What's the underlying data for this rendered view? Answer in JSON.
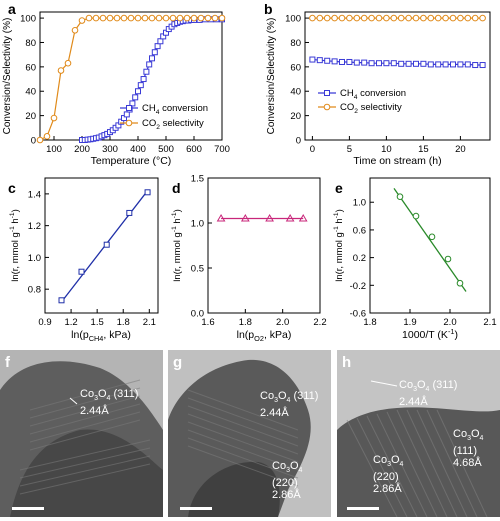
{
  "panels": {
    "a": {
      "label": "a",
      "xlabel": "Temperature (°C)",
      "ylabel": "Conversion/Selectivity (%)",
      "xticks": [
        "100",
        "200",
        "300",
        "400",
        "500",
        "600",
        "700"
      ],
      "yticks": [
        "0",
        "20",
        "40",
        "60",
        "80",
        "100"
      ],
      "legend": [
        "CH4 conversion",
        "CO2 selectivity"
      ]
    },
    "b": {
      "label": "b",
      "xlabel": "Time on stream (h)",
      "ylabel": "Conversion/Selectivity (%)",
      "xticks": [
        "0",
        "5",
        "10",
        "15",
        "20"
      ],
      "yticks": [
        "0",
        "20",
        "40",
        "60",
        "80",
        "100"
      ],
      "legend": [
        "CH4 conversion",
        "CO2 selectivity"
      ]
    },
    "c": {
      "label": "c",
      "xlabel": "ln(pCH4, kPa)",
      "ylabel": "ln(r, mmol g-1 h-1)",
      "xticks": [
        "0.9",
        "1.2",
        "1.5",
        "1.8",
        "2.1"
      ],
      "yticks": [
        "0.8",
        "1.0",
        "1.2",
        "1.4"
      ]
    },
    "d": {
      "label": "d",
      "xlabel": "ln(pO2, kPa)",
      "ylabel": "ln(r, mmol g-1 h-1)",
      "xticks": [
        "1.6",
        "1.8",
        "2.0",
        "2.2"
      ],
      "yticks": [
        "0.0",
        "0.5",
        "1.0",
        "1.5"
      ]
    },
    "e": {
      "label": "e",
      "xlabel": "1000/T (K-1)",
      "ylabel": "ln(r, mmol g-1 h-1)",
      "xticks": [
        "1.8",
        "1.9",
        "2.0",
        "2.1"
      ],
      "yticks": [
        "-0.6",
        "-0.2",
        "0.2",
        "0.6",
        "1.0"
      ]
    }
  },
  "tem_panels": [
    {
      "label": "f",
      "annotations": [
        {
          "formula": "Co3O4",
          "main": "Co",
          "sub1": "3",
          "mid": "O",
          "sub2": "4",
          "plane": " (311)",
          "spacing": "2.44Å"
        }
      ]
    },
    {
      "label": "g",
      "annotations": [
        {
          "formula": "Co3O4",
          "main": "Co",
          "sub1": "3",
          "mid": "O",
          "sub2": "4",
          "plane": " (311)",
          "spacing": "2.44Å"
        },
        {
          "formula": "Co3O4",
          "main": "Co",
          "sub1": "3",
          "mid": "O",
          "sub2": "4",
          "plane": "(220)",
          "spacing": "2.86Å"
        }
      ]
    },
    {
      "label": "h",
      "annotations": [
        {
          "formula": "Co3O4",
          "main": "Co",
          "sub1": "3",
          "mid": "O",
          "sub2": "4",
          "plane": " (311)",
          "spacing": "2.44Å"
        },
        {
          "formula": "Co3O4",
          "main": "Co",
          "sub1": "3",
          "mid": "O",
          "sub2": "4",
          "plane": "(220)",
          "spacing": "2.86Å"
        },
        {
          "formula": "Co3O4",
          "main": "Co",
          "sub1": "3",
          "mid": "O",
          "sub2": "4",
          "plane": "(111)",
          "spacing": "4.68Å"
        }
      ]
    }
  ],
  "colors": {
    "ch4": "#3a3ad6",
    "co2": "#e08a1a",
    "fit_c": "#1f2fa8",
    "fit_d": "#c8267a",
    "fit_e": "#2a8a2a"
  },
  "chart_data": [
    {
      "panel": "a",
      "type": "line",
      "xlabel": "Temperature (°C)",
      "ylabel": "Conversion/Selectivity (%)",
      "xlim": [
        50,
        700
      ],
      "ylim": [
        0,
        105
      ],
      "legend_position": "bottom-right",
      "series": [
        {
          "name": "CH4 conversion",
          "x": [
            200,
            210,
            220,
            230,
            240,
            250,
            260,
            270,
            280,
            290,
            300,
            310,
            320,
            330,
            340,
            350,
            360,
            370,
            380,
            390,
            400,
            410,
            420,
            430,
            440,
            450,
            460,
            470,
            480,
            490,
            500,
            510,
            520,
            530,
            540,
            550,
            560,
            570,
            580,
            590,
            600,
            620,
            640,
            660,
            680,
            700
          ],
          "y": [
            0,
            0,
            0.3,
            0.6,
            1,
            1.5,
            2,
            3,
            4,
            5,
            6.5,
            8,
            10,
            12,
            15,
            18,
            21,
            25,
            30,
            35,
            40,
            45,
            50,
            56,
            62,
            67,
            72,
            77,
            81,
            85,
            88,
            91,
            93,
            95,
            96,
            97,
            97.5,
            98,
            98,
            98.5,
            98.5,
            98.5,
            99,
            99,
            99,
            99
          ]
        },
        {
          "name": "CO2 selectivity",
          "x": [
            50,
            75,
            100,
            125,
            150,
            175,
            200,
            225,
            250,
            275,
            300,
            325,
            350,
            375,
            400,
            425,
            450,
            475,
            500,
            525,
            550,
            575,
            600,
            625,
            650,
            675,
            700
          ],
          "y": [
            0,
            3,
            18,
            57,
            63,
            90,
            98,
            100,
            100,
            100,
            100,
            100,
            100,
            100,
            100,
            100,
            100,
            100,
            100,
            100,
            100,
            100,
            100,
            100,
            100,
            100,
            100
          ]
        }
      ]
    },
    {
      "panel": "b",
      "type": "line",
      "xlabel": "Time on stream (h)",
      "ylabel": "Conversion/Selectivity (%)",
      "xlim": [
        -1,
        24
      ],
      "ylim": [
        0,
        105
      ],
      "legend_position": "bottom-left",
      "series": [
        {
          "name": "CH4 conversion",
          "x": [
            0,
            1,
            2,
            3,
            4,
            5,
            6,
            7,
            8,
            9,
            10,
            11,
            12,
            13,
            14,
            15,
            16,
            17,
            18,
            19,
            20,
            21,
            22,
            23
          ],
          "y": [
            66,
            65.5,
            65,
            64.5,
            64,
            64,
            63.5,
            63.5,
            63,
            63,
            63,
            63,
            62.5,
            62.5,
            62.5,
            62.5,
            62,
            62,
            62,
            62,
            62,
            62,
            61.5,
            61.5
          ]
        },
        {
          "name": "CO2 selectivity",
          "x": [
            0,
            1,
            2,
            3,
            4,
            5,
            6,
            7,
            8,
            9,
            10,
            11,
            12,
            13,
            14,
            15,
            16,
            17,
            18,
            19,
            20,
            21,
            22,
            23
          ],
          "y": [
            100,
            100,
            100,
            100,
            100,
            100,
            100,
            100,
            100,
            100,
            100,
            100,
            100,
            100,
            100,
            100,
            100,
            100,
            100,
            100,
            100,
            100,
            100,
            100
          ]
        }
      ]
    },
    {
      "panel": "c",
      "type": "scatter",
      "xlabel": "ln(pCH4, kPa)",
      "ylabel": "ln(r, mmol g-1 h-1)",
      "xlim": [
        0.9,
        2.2
      ],
      "ylim": [
        0.65,
        1.5
      ],
      "points": {
        "x": [
          1.09,
          1.32,
          1.61,
          1.87,
          2.08
        ],
        "y": [
          0.73,
          0.91,
          1.08,
          1.28,
          1.41
        ]
      },
      "fit": {
        "x": [
          1.09,
          2.08
        ],
        "y": [
          0.72,
          1.42
        ]
      }
    },
    {
      "panel": "d",
      "type": "scatter",
      "xlabel": "ln(pO2, kPa)",
      "ylabel": "ln(r, mmol g-1 h-1)",
      "xlim": [
        1.6,
        2.2
      ],
      "ylim": [
        0.0,
        1.5
      ],
      "points": {
        "x": [
          1.67,
          1.8,
          1.93,
          2.04,
          2.11
        ],
        "y": [
          1.05,
          1.05,
          1.05,
          1.05,
          1.05
        ]
      },
      "fit": {
        "x": [
          1.67,
          2.11
        ],
        "y": [
          1.05,
          1.05
        ]
      }
    },
    {
      "panel": "e",
      "type": "scatter",
      "xlabel": "1000/T (K-1)",
      "ylabel": "ln(r, mmol g-1 h-1)",
      "xlim": [
        1.8,
        2.1
      ],
      "ylim": [
        -0.6,
        1.35
      ],
      "points": {
        "x": [
          1.875,
          1.915,
          1.955,
          1.995,
          2.025
        ],
        "y": [
          1.08,
          0.8,
          0.5,
          0.18,
          -0.17
        ]
      },
      "fit": {
        "x": [
          1.86,
          2.04
        ],
        "y": [
          1.2,
          -0.29
        ]
      }
    }
  ]
}
